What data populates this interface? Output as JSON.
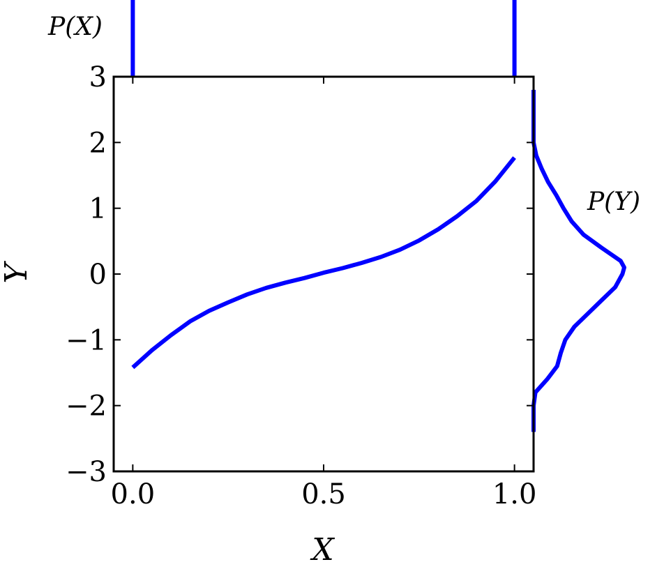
{
  "chart_data": {
    "type": "line",
    "title": "",
    "xlabel": "X",
    "ylabel": "Y",
    "xlim": [
      -0.05,
      1.05
    ],
    "ylim": [
      -3,
      3
    ],
    "xticks": [
      0.0,
      0.5,
      1.0
    ],
    "xtick_labels": [
      "0.0",
      "0.5",
      "1.0"
    ],
    "yticks": [
      -3,
      -2,
      -1,
      0,
      1,
      2,
      3
    ],
    "ytick_labels": [
      "−3",
      "−2",
      "−1",
      "0",
      "1",
      "2",
      "3"
    ],
    "grid": false,
    "color": "#0000ff",
    "series": [
      {
        "x": [
          0.0,
          0.05,
          0.1,
          0.15,
          0.2,
          0.25,
          0.3,
          0.35,
          0.4,
          0.45,
          0.5,
          0.55,
          0.6,
          0.65,
          0.7,
          0.75,
          0.8,
          0.85,
          0.9,
          0.95,
          1.0
        ],
        "y": [
          -1.42,
          -1.16,
          -0.93,
          -0.72,
          -0.56,
          -0.43,
          -0.31,
          -0.21,
          -0.13,
          -0.06,
          0.02,
          0.09,
          0.17,
          0.26,
          0.37,
          0.51,
          0.68,
          0.88,
          1.11,
          1.41,
          1.77
        ]
      }
    ],
    "marginal_x": {
      "label": "P(X)",
      "x": [
        0.0,
        0.0,
        1.0,
        1.0
      ],
      "density": [
        0,
        1,
        1,
        0
      ]
    },
    "marginal_y": {
      "label": "P(Y)",
      "y": [
        -2.4,
        -2.0,
        -1.8,
        -1.6,
        -1.4,
        -1.2,
        -1.0,
        -0.8,
        -0.6,
        -0.4,
        -0.2,
        0.0,
        0.1,
        0.2,
        0.4,
        0.6,
        0.8,
        1.0,
        1.2,
        1.4,
        1.6,
        1.8,
        2.0,
        2.2,
        2.8
      ],
      "density": [
        0.0,
        0.0,
        0.02,
        0.15,
        0.26,
        0.3,
        0.35,
        0.45,
        0.6,
        0.75,
        0.9,
        0.98,
        1.0,
        0.96,
        0.75,
        0.55,
        0.42,
        0.33,
        0.25,
        0.16,
        0.09,
        0.03,
        0.0,
        0.0,
        0.0
      ]
    }
  }
}
